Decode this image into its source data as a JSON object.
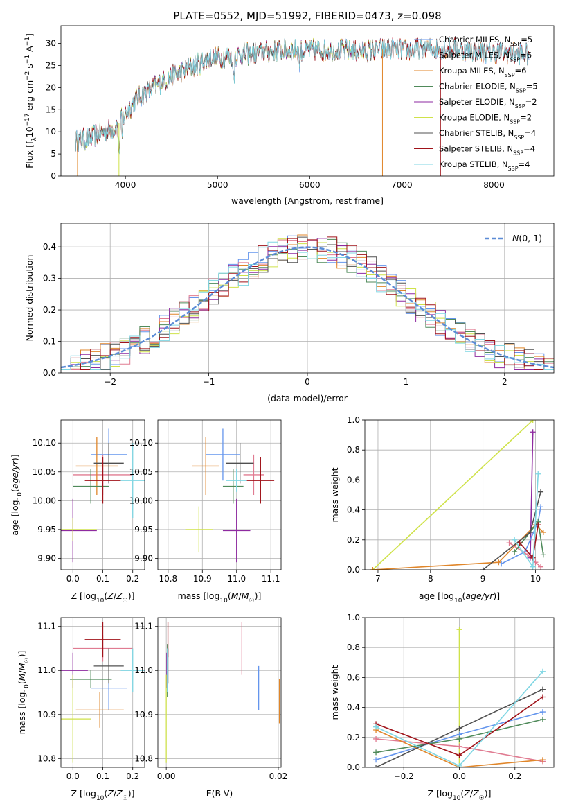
{
  "figure": {
    "title": "PLATE=0552, MJD=51992, FIBERID=0473, z=0.098"
  },
  "colors": {
    "chab_miles": "#6495ed",
    "salp_miles": "#e07b91",
    "krou_miles": "#e0862a",
    "chab_elodie": "#4f8a5a",
    "salp_elodie": "#8e2aa0",
    "krou_elodie": "#cfe24a",
    "chab_stelib": "#505050",
    "salp_stelib": "#a0131a",
    "krou_stelib": "#7fd6e3",
    "gaussian": "#5b8bd6"
  },
  "chart_data": [
    {
      "id": "spectrum",
      "type": "line",
      "title": "PLATE=0552, MJD=51992, FIBERID=0473, z=0.098",
      "xlabel": "wavelength [Angstrom, rest frame]",
      "ylabel": "Flux [f_λ 10^-17 erg cm^-2 s^-1 A^-1]",
      "xlim": [
        3300,
        8650
      ],
      "ylim": [
        0,
        34
      ],
      "xticks": [
        4000,
        5000,
        6000,
        7000,
        8000
      ],
      "yticks": [
        0,
        5,
        10,
        15,
        20,
        25,
        30
      ],
      "grid": false,
      "legend": "upper right",
      "continuum": {
        "wavelength": [
          3460,
          3600,
          3750,
          3900,
          4000,
          4100,
          4300,
          4500,
          4700,
          4900,
          5100,
          5300,
          5500,
          5700,
          5900,
          6100,
          6300,
          6500,
          6700,
          6900,
          7100,
          7300,
          7500,
          7700,
          7900,
          8100,
          8300
        ],
        "flux": [
          8,
          8.5,
          10,
          11,
          14,
          17,
          20,
          22.5,
          24.5,
          26.5,
          27,
          27.5,
          28,
          28.5,
          28.5,
          28.5,
          28.5,
          28.2,
          28.5,
          28.8,
          28.5,
          28.8,
          29,
          28.5,
          28,
          28,
          27.5
        ]
      },
      "series": [
        {
          "name": "Chabrier MILES, N_SSP=5",
          "label_main": "Chabrier MILES, N",
          "label_sub": "SSP",
          "label_tail": "=5",
          "color_key": "chab_miles"
        },
        {
          "name": "Salpeter MILES, N_SSP=6",
          "label_main": "Salpeter MILES, N",
          "label_sub": "SSP",
          "label_tail": "=6",
          "color_key": "salp_miles"
        },
        {
          "name": "Kroupa MILES, N_SSP=6",
          "label_main": "Kroupa MILES, N",
          "label_sub": "SSP",
          "label_tail": "=6",
          "color_key": "krou_miles"
        },
        {
          "name": "Chabrier ELODIE, N_SSP=5",
          "label_main": "Chabrier ELODIE, N",
          "label_sub": "SSP",
          "label_tail": "=5",
          "color_key": "chab_elodie"
        },
        {
          "name": "Salpeter ELODIE, N_SSP=2",
          "label_main": "Salpeter ELODIE, N",
          "label_sub": "SSP",
          "label_tail": "=2",
          "color_key": "salp_elodie"
        },
        {
          "name": "Kroupa ELODIE, N_SSP=2",
          "label_main": "Kroupa ELODIE, N",
          "label_sub": "SSP",
          "label_tail": "=2",
          "color_key": "krou_elodie"
        },
        {
          "name": "Chabrier STELIB, N_SSP=4",
          "label_main": "Chabrier STELIB, N",
          "label_sub": "SSP",
          "label_tail": "=4",
          "color_key": "chab_stelib"
        },
        {
          "name": "Salpeter STELIB, N_SSP=4",
          "label_main": "Salpeter STELIB, N",
          "label_sub": "SSP",
          "label_tail": "=4",
          "color_key": "salp_stelib"
        },
        {
          "name": "Kroupa STELIB, N_SSP=4",
          "label_main": "Kroupa STELIB, N",
          "label_sub": "SSP",
          "label_tail": "=4",
          "color_key": "krou_stelib"
        }
      ]
    },
    {
      "id": "residuals",
      "type": "line",
      "xlabel": "(data-model)/error",
      "ylabel": "Normed distribution",
      "xlim": [
        -2.5,
        2.5
      ],
      "ylim": [
        0,
        0.475
      ],
      "xticks": [
        -2,
        -1,
        0,
        1,
        2
      ],
      "xtick_labels": [
        "−2",
        "−1",
        "0",
        "1",
        "2"
      ],
      "yticks": [
        0.0,
        0.1,
        0.2,
        0.3,
        0.4
      ],
      "ytick_labels": [
        "0.0",
        "0.1",
        "0.2",
        "0.3",
        "0.4"
      ],
      "grid": true,
      "legend": "upper right",
      "gaussian": {
        "name": "N(0,1)",
        "mean": 0,
        "sigma": 1
      },
      "bin_width": 0.1
    },
    {
      "id": "age_vs_Z",
      "type": "scatter",
      "xlabel": "Z [log10(Z/Z☉)]",
      "ylabel": "age [log10(age/yr)]",
      "xlim": [
        -0.04,
        0.24
      ],
      "ylim": [
        9.88,
        10.14
      ],
      "xticks": [
        0.0,
        0.1,
        0.2
      ],
      "xtick_labels": [
        "0.0",
        "0.1",
        "0.2"
      ],
      "yticks": [
        9.9,
        9.95,
        10.0,
        10.05,
        10.1
      ],
      "ytick_labels": [
        "9.90",
        "9.95",
        "10.00",
        "10.05",
        "10.10"
      ],
      "grid": true,
      "points": [
        {
          "key": "chab_miles",
          "x": 0.12,
          "xerr": 0.06,
          "y": 10.08,
          "yerr": 0.045
        },
        {
          "key": "salp_miles",
          "x": 0.1,
          "xerr": 0.1,
          "y": 10.045,
          "yerr": 0.035
        },
        {
          "key": "krou_miles",
          "x": 0.08,
          "xerr": 0.07,
          "y": 10.06,
          "yerr": 0.05
        },
        {
          "key": "chab_elodie",
          "x": 0.06,
          "xerr": 0.06,
          "y": 10.025,
          "yerr": 0.03
        },
        {
          "key": "salp_elodie",
          "x": 0.0,
          "xerr": 0.08,
          "y": 9.948,
          "yerr": 0.055
        },
        {
          "key": "krou_elodie",
          "x": 0.0,
          "xerr": 0.08,
          "y": 9.95,
          "yerr": 0.02
        },
        {
          "key": "chab_stelib",
          "x": 0.12,
          "xerr": 0.05,
          "y": 10.065,
          "yerr": 0.035
        },
        {
          "key": "salp_stelib",
          "x": 0.1,
          "xerr": 0.06,
          "y": 10.035,
          "yerr": 0.04
        },
        {
          "key": "krou_stelib",
          "x": 0.2,
          "xerr": 0.04,
          "y": 10.035,
          "yerr": 0.065
        }
      ]
    },
    {
      "id": "age_vs_mass",
      "type": "scatter",
      "xlabel": "mass [log10(M/M☉)]",
      "ylabel": "",
      "xlim": [
        10.77,
        11.13
      ],
      "ylim": [
        9.88,
        10.14
      ],
      "xticks": [
        10.8,
        10.9,
        11.0,
        11.1
      ],
      "xtick_labels": [
        "10.8",
        "10.9",
        "11.0",
        "11.1"
      ],
      "yticks": [
        9.9,
        9.95,
        10.0,
        10.05,
        10.1
      ],
      "ytick_labels": [
        "9.90",
        "9.95",
        "10.00",
        "10.05",
        "10.10"
      ],
      "grid": true,
      "points": [
        {
          "key": "chab_miles",
          "x": 10.96,
          "xerr": 0.05,
          "y": 10.08,
          "yerr": 0.045
        },
        {
          "key": "salp_miles",
          "x": 11.05,
          "xerr": 0.03,
          "y": 10.045,
          "yerr": 0.035
        },
        {
          "key": "krou_miles",
          "x": 10.91,
          "xerr": 0.04,
          "y": 10.06,
          "yerr": 0.05
        },
        {
          "key": "chab_elodie",
          "x": 10.99,
          "xerr": 0.03,
          "y": 10.025,
          "yerr": 0.03
        },
        {
          "key": "salp_elodie",
          "x": 11.0,
          "xerr": 0.04,
          "y": 9.948,
          "yerr": 0.055
        },
        {
          "key": "krou_elodie",
          "x": 10.89,
          "xerr": 0.04,
          "y": 9.95,
          "yerr": 0.04
        },
        {
          "key": "chab_stelib",
          "x": 11.01,
          "xerr": 0.04,
          "y": 10.065,
          "yerr": 0.035
        },
        {
          "key": "salp_stelib",
          "x": 11.07,
          "xerr": 0.04,
          "y": 10.035,
          "yerr": 0.04
        },
        {
          "key": "krou_stelib",
          "x": 11.0,
          "xerr": 0.03,
          "y": 10.035,
          "yerr": 0.02
        }
      ]
    },
    {
      "id": "weight_vs_age",
      "type": "line",
      "xlabel": "age [log10(age/yr)]",
      "ylabel": "mass weight",
      "xlim": [
        6.75,
        10.35
      ],
      "ylim": [
        0,
        1.0
      ],
      "xticks": [
        7,
        8,
        9,
        10
      ],
      "xtick_labels": [
        "7",
        "8",
        "9",
        "10"
      ],
      "yticks": [
        0.0,
        0.2,
        0.4,
        0.6,
        0.8,
        1.0
      ],
      "ytick_labels": [
        "0.0",
        "0.2",
        "0.4",
        "0.6",
        "0.8",
        "1.0"
      ],
      "grid": true,
      "series": [
        {
          "key": "krou_elodie",
          "x": [
            6.9,
            9.95
          ],
          "y": [
            0.0,
            1.0
          ]
        },
        {
          "key": "salp_elodie",
          "x": [
            9.9,
            9.95
          ],
          "y": [
            0.08,
            0.92
          ]
        },
        {
          "key": "krou_miles",
          "x": [
            6.9,
            9.3,
            10.0,
            10.15
          ],
          "y": [
            0.0,
            0.05,
            0.3,
            0.25
          ]
        },
        {
          "key": "chab_miles",
          "x": [
            9.35,
            9.8,
            10.05,
            10.1
          ],
          "y": [
            0.04,
            0.12,
            0.32,
            0.42
          ]
        },
        {
          "key": "salp_miles",
          "x": [
            9.5,
            9.85,
            10.0,
            10.1
          ],
          "y": [
            0.18,
            0.1,
            0.05,
            0.02
          ]
        },
        {
          "key": "chab_elodie",
          "x": [
            9.6,
            10.05,
            10.15
          ],
          "y": [
            0.12,
            0.32,
            0.1
          ]
        },
        {
          "key": "chab_stelib",
          "x": [
            9.0,
            9.9,
            10.1
          ],
          "y": [
            0.0,
            0.25,
            0.52
          ]
        },
        {
          "key": "salp_stelib",
          "x": [
            9.7,
            9.95,
            10.05
          ],
          "y": [
            0.18,
            0.08,
            0.3
          ]
        },
        {
          "key": "krou_stelib",
          "x": [
            9.6,
            9.95,
            10.05
          ],
          "y": [
            0.2,
            0.02,
            0.64
          ]
        }
      ]
    },
    {
      "id": "mass_vs_Z",
      "type": "scatter",
      "xlabel": "Z [log10(Z/Z☉)]",
      "ylabel": "mass [log10(M/M☉)]",
      "xlim": [
        -0.04,
        0.24
      ],
      "ylim": [
        10.78,
        11.12
      ],
      "xticks": [
        0.0,
        0.1,
        0.2
      ],
      "xtick_labels": [
        "0.0",
        "0.1",
        "0.2"
      ],
      "yticks": [
        10.8,
        10.9,
        11.0,
        11.1
      ],
      "ytick_labels": [
        "10.8",
        "10.9",
        "11.0",
        "11.1"
      ],
      "grid": true,
      "points": [
        {
          "key": "chab_miles",
          "x": 0.12,
          "xerr": 0.06,
          "y": 10.96,
          "yerr": 0.05
        },
        {
          "key": "salp_miles",
          "x": 0.1,
          "xerr": 0.1,
          "y": 11.05,
          "yerr": 0.03
        },
        {
          "key": "krou_miles",
          "x": 0.09,
          "xerr": 0.08,
          "y": 10.91,
          "yerr": 0.04
        },
        {
          "key": "chab_elodie",
          "x": 0.06,
          "xerr": 0.07,
          "y": 10.98,
          "yerr": 0.02
        },
        {
          "key": "salp_elodie",
          "x": 0.0,
          "xerr": 0.05,
          "y": 11.0,
          "yerr": 0.04
        },
        {
          "key": "krou_elodie",
          "x": 0.0,
          "xerr": 0.06,
          "y": 10.89,
          "yerr": 0.1
        },
        {
          "key": "chab_stelib",
          "x": 0.12,
          "xerr": 0.05,
          "y": 11.01,
          "yerr": 0.04
        },
        {
          "key": "salp_stelib",
          "x": 0.1,
          "xerr": 0.06,
          "y": 11.07,
          "yerr": 0.04
        },
        {
          "key": "krou_stelib",
          "x": 0.2,
          "xerr": 0.04,
          "y": 11.0,
          "yerr": 0.05
        }
      ]
    },
    {
      "id": "mass_vs_EBV",
      "type": "scatter",
      "xlabel": "E(B-V)",
      "ylabel": "",
      "xlim": [
        -0.0015,
        0.0205
      ],
      "ylim": [
        10.78,
        11.12
      ],
      "xticks": [
        0.0,
        0.02
      ],
      "xtick_labels": [
        "0.00",
        "0.02"
      ],
      "yticks": [
        10.8,
        10.9,
        11.0,
        11.1
      ],
      "ytick_labels": [
        "10.8",
        "10.9",
        "11.0",
        "11.1"
      ],
      "grid": true,
      "points": [
        {
          "key": "chab_miles",
          "x": 0.0165,
          "xerr": 0.0,
          "y": 10.96,
          "yerr": 0.05
        },
        {
          "key": "salp_miles",
          "x": 0.0135,
          "xerr": 0.0,
          "y": 11.05,
          "yerr": 0.06
        },
        {
          "key": "krou_miles",
          "x": 0.0202,
          "xerr": 0.0,
          "y": 10.93,
          "yerr": 0.05
        },
        {
          "key": "chab_elodie",
          "x": 0.0002,
          "xerr": 0.0,
          "y": 11.0,
          "yerr": 0.06
        },
        {
          "key": "salp_elodie",
          "x": 0.0001,
          "xerr": 0.0,
          "y": 11.0,
          "yerr": 0.04
        },
        {
          "key": "krou_elodie",
          "x": 0.0,
          "xerr": 0.0,
          "y": 10.89,
          "yerr": 0.1
        },
        {
          "key": "chab_stelib",
          "x": 0.0003,
          "xerr": 0.0,
          "y": 11.01,
          "yerr": 0.04
        },
        {
          "key": "salp_stelib",
          "x": 0.0003,
          "xerr": 0.0,
          "y": 11.07,
          "yerr": 0.04
        },
        {
          "key": "krou_stelib",
          "x": 0.0002,
          "xerr": 0.0,
          "y": 11.0,
          "yerr": 0.05
        }
      ]
    },
    {
      "id": "weight_vs_Z",
      "type": "line",
      "xlabel": "Z [log10(Z/Z☉)]",
      "ylabel": "mass weight",
      "xlim": [
        -0.34,
        0.34
      ],
      "ylim": [
        0,
        1.0
      ],
      "xticks": [
        -0.2,
        0.0,
        0.2
      ],
      "xtick_labels": [
        "−0.2",
        "0.0",
        "0.2"
      ],
      "yticks": [
        0.0,
        0.2,
        0.4,
        0.6,
        0.8,
        1.0
      ],
      "ytick_labels": [
        "0.0",
        "0.2",
        "0.4",
        "0.6",
        "0.8",
        "1.0"
      ],
      "grid": true,
      "series": [
        {
          "key": "krou_elodie",
          "x": [
            0.0,
            0.0
          ],
          "y": [
            0.0,
            0.92
          ]
        },
        {
          "key": "chab_miles",
          "x": [
            -0.3,
            0.0,
            0.3
          ],
          "y": [
            0.05,
            0.22,
            0.37
          ]
        },
        {
          "key": "salp_miles",
          "x": [
            -0.3,
            0.0,
            0.3
          ],
          "y": [
            0.19,
            0.14,
            0.04
          ]
        },
        {
          "key": "krou_miles",
          "x": [
            -0.3,
            0.0,
            0.3
          ],
          "y": [
            0.25,
            0.0,
            0.05
          ]
        },
        {
          "key": "chab_elodie",
          "x": [
            -0.3,
            0.0,
            0.3
          ],
          "y": [
            0.1,
            0.19,
            0.32
          ]
        },
        {
          "key": "chab_stelib",
          "x": [
            -0.3,
            0.0,
            0.3
          ],
          "y": [
            0.0,
            0.26,
            0.52
          ]
        },
        {
          "key": "salp_stelib",
          "x": [
            -0.3,
            0.0,
            0.3
          ],
          "y": [
            0.29,
            0.08,
            0.47
          ]
        },
        {
          "key": "krou_stelib",
          "x": [
            -0.3,
            0.0,
            0.3
          ],
          "y": [
            0.27,
            0.01,
            0.64
          ]
        }
      ]
    }
  ]
}
